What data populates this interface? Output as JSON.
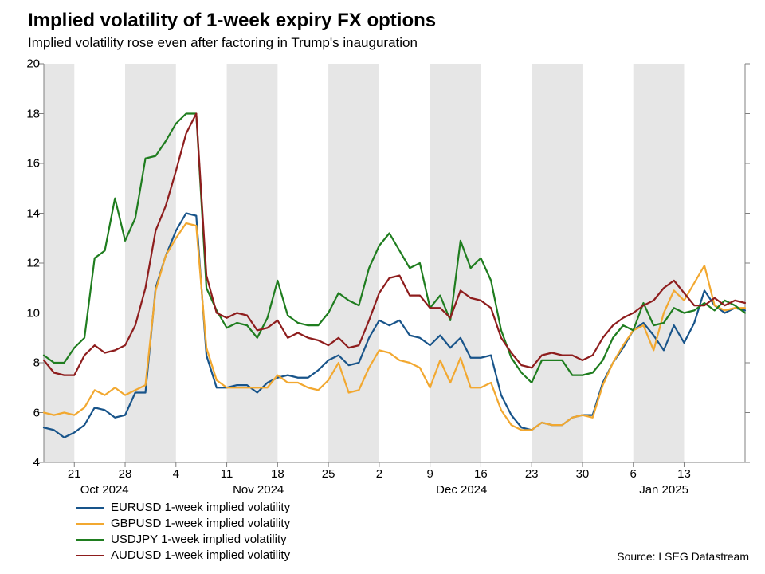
{
  "title": "Implied volatility of 1-week expiry FX options",
  "subtitle": "Implied volatility rose even after factoring in Trump's inauguration",
  "source": "Source: LSEG Datastream",
  "chart": {
    "type": "line",
    "background_color": "#ffffff",
    "alt_band_color": "#e6e6e6",
    "axis_color": "#808080",
    "tick_length": 6,
    "ylim": [
      4,
      20
    ],
    "ytick_step": 2,
    "yticks": [
      4,
      6,
      8,
      10,
      12,
      14,
      16,
      18,
      20
    ],
    "n_points": 70,
    "weekly_ticks": [
      {
        "idx": 3,
        "label": "21"
      },
      {
        "idx": 8,
        "label": "28"
      },
      {
        "idx": 13,
        "label": "4"
      },
      {
        "idx": 18,
        "label": "11"
      },
      {
        "idx": 23,
        "label": "18"
      },
      {
        "idx": 28,
        "label": "25"
      },
      {
        "idx": 33,
        "label": "2"
      },
      {
        "idx": 38,
        "label": "9"
      },
      {
        "idx": 43,
        "label": "16"
      },
      {
        "idx": 48,
        "label": "23"
      },
      {
        "idx": 53,
        "label": "30"
      },
      {
        "idx": 58,
        "label": "6"
      },
      {
        "idx": 63,
        "label": "13"
      }
    ],
    "month_labels": [
      {
        "idx": 5,
        "label": "Oct 2024"
      },
      {
        "idx": 20,
        "label": "Nov 2024"
      },
      {
        "idx": 40,
        "label": "Dec 2024"
      },
      {
        "idx": 60,
        "label": "Jan 2025"
      }
    ],
    "alt_bands": [
      {
        "from": 0,
        "to": 3
      },
      {
        "from": 8,
        "to": 13
      },
      {
        "from": 18,
        "to": 23
      },
      {
        "from": 28,
        "to": 33
      },
      {
        "from": 38,
        "to": 43
      },
      {
        "from": 48,
        "to": 53
      },
      {
        "from": 58,
        "to": 63
      }
    ],
    "line_width": 2.2,
    "series": [
      {
        "key": "eurusd",
        "label": "EURUSD 1-week implied volatility",
        "color": "#18548a",
        "values": [
          5.4,
          5.3,
          5.0,
          5.2,
          5.5,
          6.2,
          6.1,
          5.8,
          5.9,
          6.8,
          6.8,
          11.0,
          12.3,
          13.3,
          14.0,
          13.9,
          8.3,
          7.0,
          7.0,
          7.1,
          7.1,
          6.8,
          7.2,
          7.4,
          7.5,
          7.4,
          7.4,
          7.7,
          8.1,
          8.3,
          7.9,
          8.0,
          9.0,
          9.7,
          9.5,
          9.7,
          9.1,
          9.0,
          8.7,
          9.1,
          8.6,
          9.0,
          8.2,
          8.2,
          8.3,
          6.7,
          5.9,
          5.4,
          5.3,
          5.6,
          5.5,
          5.5,
          5.8,
          5.9,
          5.9,
          7.2,
          8.0,
          8.6,
          9.3,
          9.6,
          9.1,
          8.5,
          9.5,
          8.8,
          9.6,
          10.9,
          10.3,
          10.0,
          10.2,
          10.1
        ]
      },
      {
        "key": "gbpusd",
        "label": "GBPUSD 1-week implied volatility",
        "color": "#f2a830",
        "values": [
          6.0,
          5.9,
          6.0,
          5.9,
          6.2,
          6.9,
          6.7,
          7.0,
          6.7,
          6.9,
          7.1,
          10.9,
          12.3,
          13.0,
          13.6,
          13.5,
          8.6,
          7.3,
          7.0,
          7.0,
          7.0,
          7.0,
          7.0,
          7.5,
          7.2,
          7.2,
          7.0,
          6.9,
          7.3,
          8.0,
          6.8,
          6.9,
          7.8,
          8.5,
          8.4,
          8.1,
          8.0,
          7.8,
          7.0,
          8.1,
          7.2,
          8.2,
          7.0,
          7.0,
          7.2,
          6.1,
          5.5,
          5.3,
          5.3,
          5.6,
          5.5,
          5.5,
          5.8,
          5.9,
          5.8,
          7.1,
          8.0,
          8.7,
          9.3,
          9.5,
          8.5,
          10.0,
          10.9,
          10.5,
          11.2,
          11.9,
          10.3,
          10.1,
          10.2,
          10.2
        ]
      },
      {
        "key": "usdjpy",
        "label": "USDJPY 1-week implied volatility",
        "color": "#1f7d1f",
        "values": [
          8.3,
          8.0,
          8.0,
          8.6,
          9.0,
          12.2,
          12.5,
          14.6,
          12.9,
          13.8,
          16.2,
          16.3,
          16.9,
          17.6,
          18.0,
          18.0,
          11.0,
          10.1,
          9.4,
          9.6,
          9.5,
          9.0,
          9.8,
          11.3,
          9.9,
          9.6,
          9.5,
          9.5,
          10.0,
          10.8,
          10.5,
          10.3,
          11.8,
          12.7,
          13.2,
          12.5,
          11.8,
          12.0,
          10.2,
          10.7,
          9.7,
          12.9,
          11.8,
          12.2,
          11.3,
          9.3,
          8.2,
          7.6,
          7.2,
          8.1,
          8.1,
          8.1,
          7.5,
          7.5,
          7.6,
          8.1,
          9.0,
          9.5,
          9.3,
          10.4,
          9.5,
          9.6,
          10.2,
          10.0,
          10.1,
          10.4,
          10.1,
          10.5,
          10.3,
          10.0
        ]
      },
      {
        "key": "audusd",
        "label": "AUDUSD 1-week implied volatility",
        "color": "#8e1d1d",
        "values": [
          8.1,
          7.6,
          7.5,
          7.5,
          8.3,
          8.7,
          8.4,
          8.5,
          8.7,
          9.5,
          11.0,
          13.3,
          14.3,
          15.7,
          17.2,
          18.0,
          11.5,
          10.0,
          9.8,
          10.0,
          9.9,
          9.3,
          9.4,
          9.7,
          9.0,
          9.2,
          9.0,
          8.9,
          8.7,
          9.0,
          8.6,
          8.7,
          9.7,
          10.8,
          11.4,
          11.5,
          10.7,
          10.7,
          10.2,
          10.2,
          9.8,
          10.9,
          10.6,
          10.5,
          10.2,
          9.0,
          8.4,
          7.9,
          7.8,
          8.3,
          8.4,
          8.3,
          8.3,
          8.1,
          8.3,
          9.0,
          9.5,
          9.8,
          10.0,
          10.3,
          10.5,
          11.0,
          11.3,
          10.8,
          10.3,
          10.3,
          10.6,
          10.3,
          10.5,
          10.4
        ]
      }
    ],
    "legend_order": [
      "eurusd",
      "gbpusd",
      "usdjpy",
      "audusd"
    ]
  }
}
